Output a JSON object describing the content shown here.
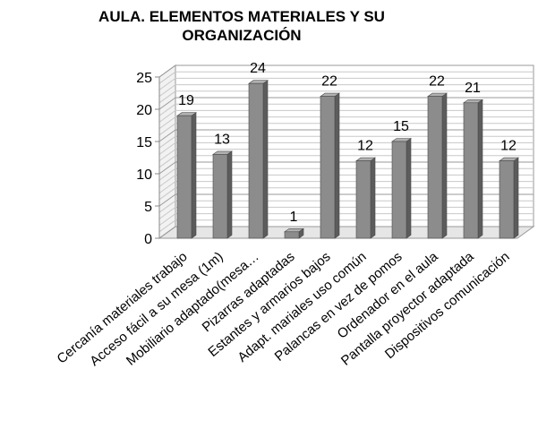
{
  "chart_data": {
    "type": "bar",
    "title": "AULA. ELEMENTOS MATERIALES Y SU ORGANIZACIÓN",
    "categories": [
      "Cercanía materiales trabajo",
      "Acceso fácil a su mesa (1m)",
      "Mobiliario adaptado(mesa…",
      "Pizarras adaptadas",
      "Estantes y armarios bajos",
      "Adapt. mariales uso común",
      "Palancas en vez de pomos",
      "Ordenador en el aula",
      "Pantalla proyector adaptada",
      "Dispositivos comunicación"
    ],
    "values": [
      19,
      13,
      24,
      1,
      22,
      12,
      15,
      22,
      21,
      12
    ],
    "ylim": [
      0,
      25
    ],
    "yticks": [
      "0",
      "5",
      "10",
      "15",
      "20",
      "25"
    ],
    "grid": true,
    "bar_color": "#8c8c8c"
  }
}
